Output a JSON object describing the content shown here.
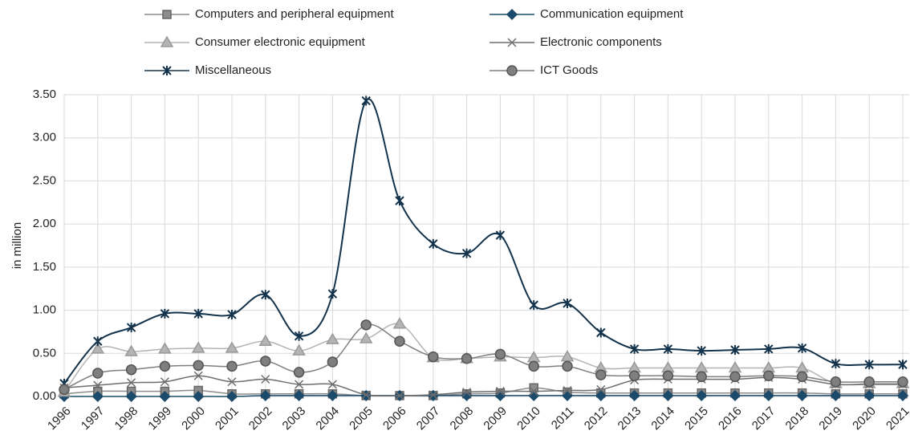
{
  "chart_data": {
    "type": "line",
    "y_label": "in million",
    "categories": [
      "1996",
      "1997",
      "1998",
      "1999",
      "2000",
      "2001",
      "2002",
      "2003",
      "2004",
      "2005",
      "2006",
      "2007",
      "2008",
      "2009",
      "2010",
      "2011",
      "2012",
      "2013",
      "2014",
      "2015",
      "2016",
      "2017",
      "2018",
      "2019",
      "2020",
      "2021"
    ],
    "series": [
      {
        "name": "Computers and peripheral equipment",
        "color": "#8c8c8c",
        "marker": "square",
        "values": [
          0.03,
          0.06,
          0.06,
          0.06,
          0.07,
          0.03,
          0.03,
          0.03,
          0.03,
          0.01,
          0.01,
          0.01,
          0.03,
          0.04,
          0.1,
          0.05,
          0.04,
          0.04,
          0.04,
          0.04,
          0.04,
          0.04,
          0.04,
          0.03,
          0.03,
          0.03
        ]
      },
      {
        "name": "Communication equipment",
        "color": "#1b4a6b",
        "marker": "diamond",
        "values": [
          0,
          0,
          0,
          0,
          0,
          0,
          0.01,
          0.01,
          0.01,
          0.01,
          0.01,
          0.01,
          0.01,
          0.01,
          0.01,
          0.01,
          0.01,
          0.01,
          0.01,
          0.01,
          0.01,
          0.01,
          0.01,
          0.01,
          0.01,
          0.01
        ]
      },
      {
        "name": "Consumer electronic equipment",
        "color": "#b4b4b4",
        "marker": "triangle",
        "values": [
          0.05,
          0.55,
          0.52,
          0.55,
          0.56,
          0.56,
          0.64,
          0.53,
          0.66,
          0.67,
          0.84,
          0.45,
          0.44,
          0.46,
          0.45,
          0.46,
          0.33,
          0.33,
          0.33,
          0.33,
          0.33,
          0.33,
          0.33,
          0.15,
          0.15,
          0.15
        ]
      },
      {
        "name": "Electronic components",
        "color": "#6e6e6e",
        "marker": "x",
        "values": [
          0.1,
          0.13,
          0.16,
          0.17,
          0.24,
          0.17,
          0.2,
          0.14,
          0.14,
          0.02,
          0.01,
          0.02,
          0.05,
          0.06,
          0.06,
          0.07,
          0.08,
          0.19,
          0.2,
          0.2,
          0.2,
          0.22,
          0.2,
          0.14,
          0.14,
          0.14
        ]
      },
      {
        "name": "Miscellaneous",
        "color": "#13334c",
        "marker": "asterisk",
        "values": [
          0.15,
          0.64,
          0.8,
          0.96,
          0.96,
          0.95,
          1.18,
          0.7,
          1.19,
          3.43,
          2.27,
          1.77,
          1.66,
          1.87,
          1.06,
          1.08,
          0.74,
          0.55,
          0.55,
          0.53,
          0.54,
          0.55,
          0.56,
          0.38,
          0.37,
          0.37
        ]
      },
      {
        "name": "ICT Goods",
        "color": "#7f7f7f",
        "marker": "circle",
        "values": [
          0.08,
          0.27,
          0.31,
          0.35,
          0.36,
          0.35,
          0.41,
          0.28,
          0.4,
          0.83,
          0.64,
          0.46,
          0.44,
          0.49,
          0.35,
          0.35,
          0.25,
          0.24,
          0.24,
          0.23,
          0.23,
          0.24,
          0.23,
          0.17,
          0.17,
          0.17
        ]
      }
    ],
    "ylim": [
      0,
      3.5
    ],
    "yticks": [
      {
        "value": 0,
        "label": "0.00"
      },
      {
        "value": 0.5,
        "label": "0.50"
      },
      {
        "value": 1,
        "label": "1.00"
      },
      {
        "value": 1.5,
        "label": "1.50"
      },
      {
        "value": 2,
        "label": "2.00"
      },
      {
        "value": 2.5,
        "label": "2.50"
      },
      {
        "value": 3,
        "label": "3.00"
      },
      {
        "value": 3.5,
        "label": "3.50"
      }
    ],
    "grid": true,
    "legend": "top",
    "smooth": true
  }
}
